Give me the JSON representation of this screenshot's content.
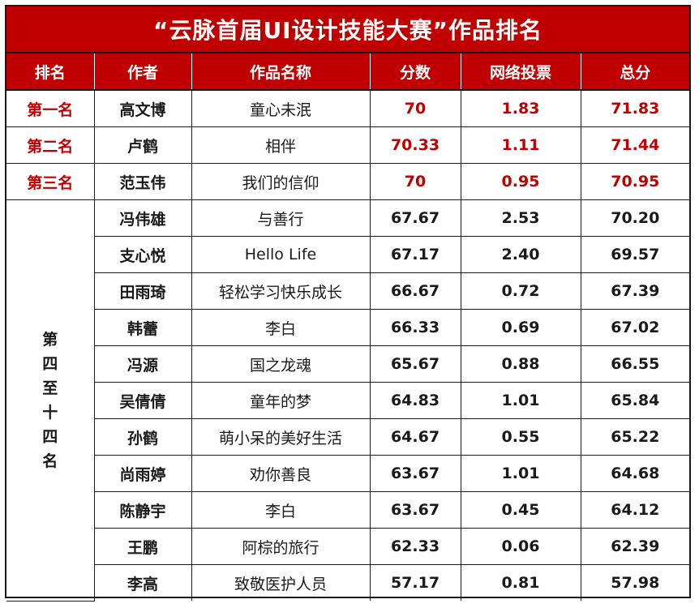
{
  "title": "“云脉首届UI设计技能大赛”作品排名",
  "headers": [
    "排名",
    "作者",
    "作品名称",
    "分数",
    "网络投票",
    "总分"
  ],
  "top_rows": [
    {
      "rank": "第一名",
      "author": "高文博",
      "work": "童心未泯",
      "score": "70",
      "vote": "1.83",
      "total": "71.83"
    },
    {
      "rank": "第二名",
      "author": "卢鹤",
      "work": "相伴",
      "score": "70.33",
      "vote": "1.11",
      "total": "71.44"
    },
    {
      "rank": "第三名",
      "author": "范玉伟",
      "work": "我们的信仰",
      "score": "70",
      "vote": "0.95",
      "total": "70.95"
    }
  ],
  "group_rank": [
    "第",
    "四",
    "至",
    "十",
    "四",
    "名"
  ],
  "other_rows": [
    {
      "author": "冯伟雄",
      "work": "与善行",
      "score": "67.67",
      "vote": "2.53",
      "total": "70.20"
    },
    {
      "author": "支心悦",
      "work": "Hello Life",
      "score": "67.17",
      "vote": "2.40",
      "total": "69.57"
    },
    {
      "author": "田雨琦",
      "work": "轻松学习快乐成长",
      "score": "66.67",
      "vote": "0.72",
      "total": "67.39"
    },
    {
      "author": "韩蕾",
      "work": "李白",
      "score": "66.33",
      "vote": "0.69",
      "total": "67.02"
    },
    {
      "author": "冯源",
      "work": "国之龙魂",
      "score": "65.67",
      "vote": "0.88",
      "total": "66.55"
    },
    {
      "author": "吴倩倩",
      "work": "童年的梦",
      "score": "64.83",
      "vote": "1.01",
      "total": "65.84"
    },
    {
      "author": "孙鹤",
      "work": "萌小呆的美好生活",
      "score": "64.67",
      "vote": "0.55",
      "total": "65.22"
    },
    {
      "author": "尚雨婷",
      "work": "劝你善良",
      "score": "63.67",
      "vote": "1.01",
      "total": "64.68"
    },
    {
      "author": "陈静宇",
      "work": "李白",
      "score": "63.67",
      "vote": "0.45",
      "total": "64.12"
    },
    {
      "author": "王鹏",
      "work": "阿棕的旅行",
      "score": "62.33",
      "vote": "0.06",
      "total": "62.39"
    },
    {
      "author": "李高",
      "work": "致敬医护人员",
      "score": "57.17",
      "vote": "0.81",
      "total": "57.98"
    }
  ]
}
